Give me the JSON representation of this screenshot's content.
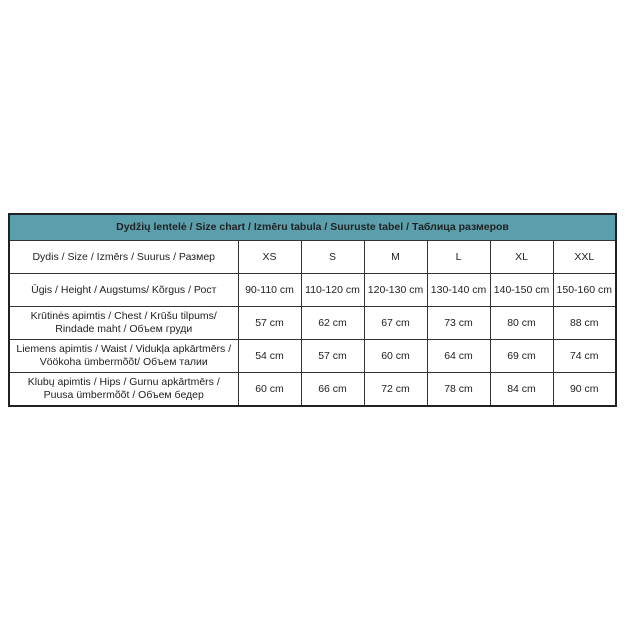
{
  "title": "Dydžių lentelė / Size chart / Izmēru tabula / Suuruste tabel / Таблица размеров",
  "header_color": "#5a9fab",
  "rows": [
    {
      "label": "Dydis / Size / Izmērs / Suurus / Размер",
      "values": [
        "XS",
        "S",
        "M",
        "L",
        "XL",
        "XXL"
      ]
    },
    {
      "label": "Ūgis / Height / Augstums/ Kõrgus / Рост",
      "values": [
        "90-110 cm",
        "110-120 cm",
        "120-130 cm",
        "130-140 cm",
        "140-150 cm",
        "150-160 cm"
      ]
    },
    {
      "label": "Krūtinės apimtis / Chest / Krūšu tilpums/ Rindade maht / Объем груди",
      "values": [
        "57 cm",
        "62 cm",
        "67 cm",
        "73 cm",
        "80 cm",
        "88 cm"
      ]
    },
    {
      "label": "Liemens apimtis / Waist / Vidukļa apkārtmērs / Vöökoha ümbermõõt/ Объем талии",
      "values": [
        "54 cm",
        "57 cm",
        "60 cm",
        "64 cm",
        "69 cm",
        "74 cm"
      ]
    },
    {
      "label": "Klubų apimtis / Hips / Gurnu apkārtmērs / Puusa ümbermõõt / Объем бедер",
      "values": [
        "60 cm",
        "66 cm",
        "72 cm",
        "78 cm",
        "84 cm",
        "90 cm"
      ]
    }
  ]
}
